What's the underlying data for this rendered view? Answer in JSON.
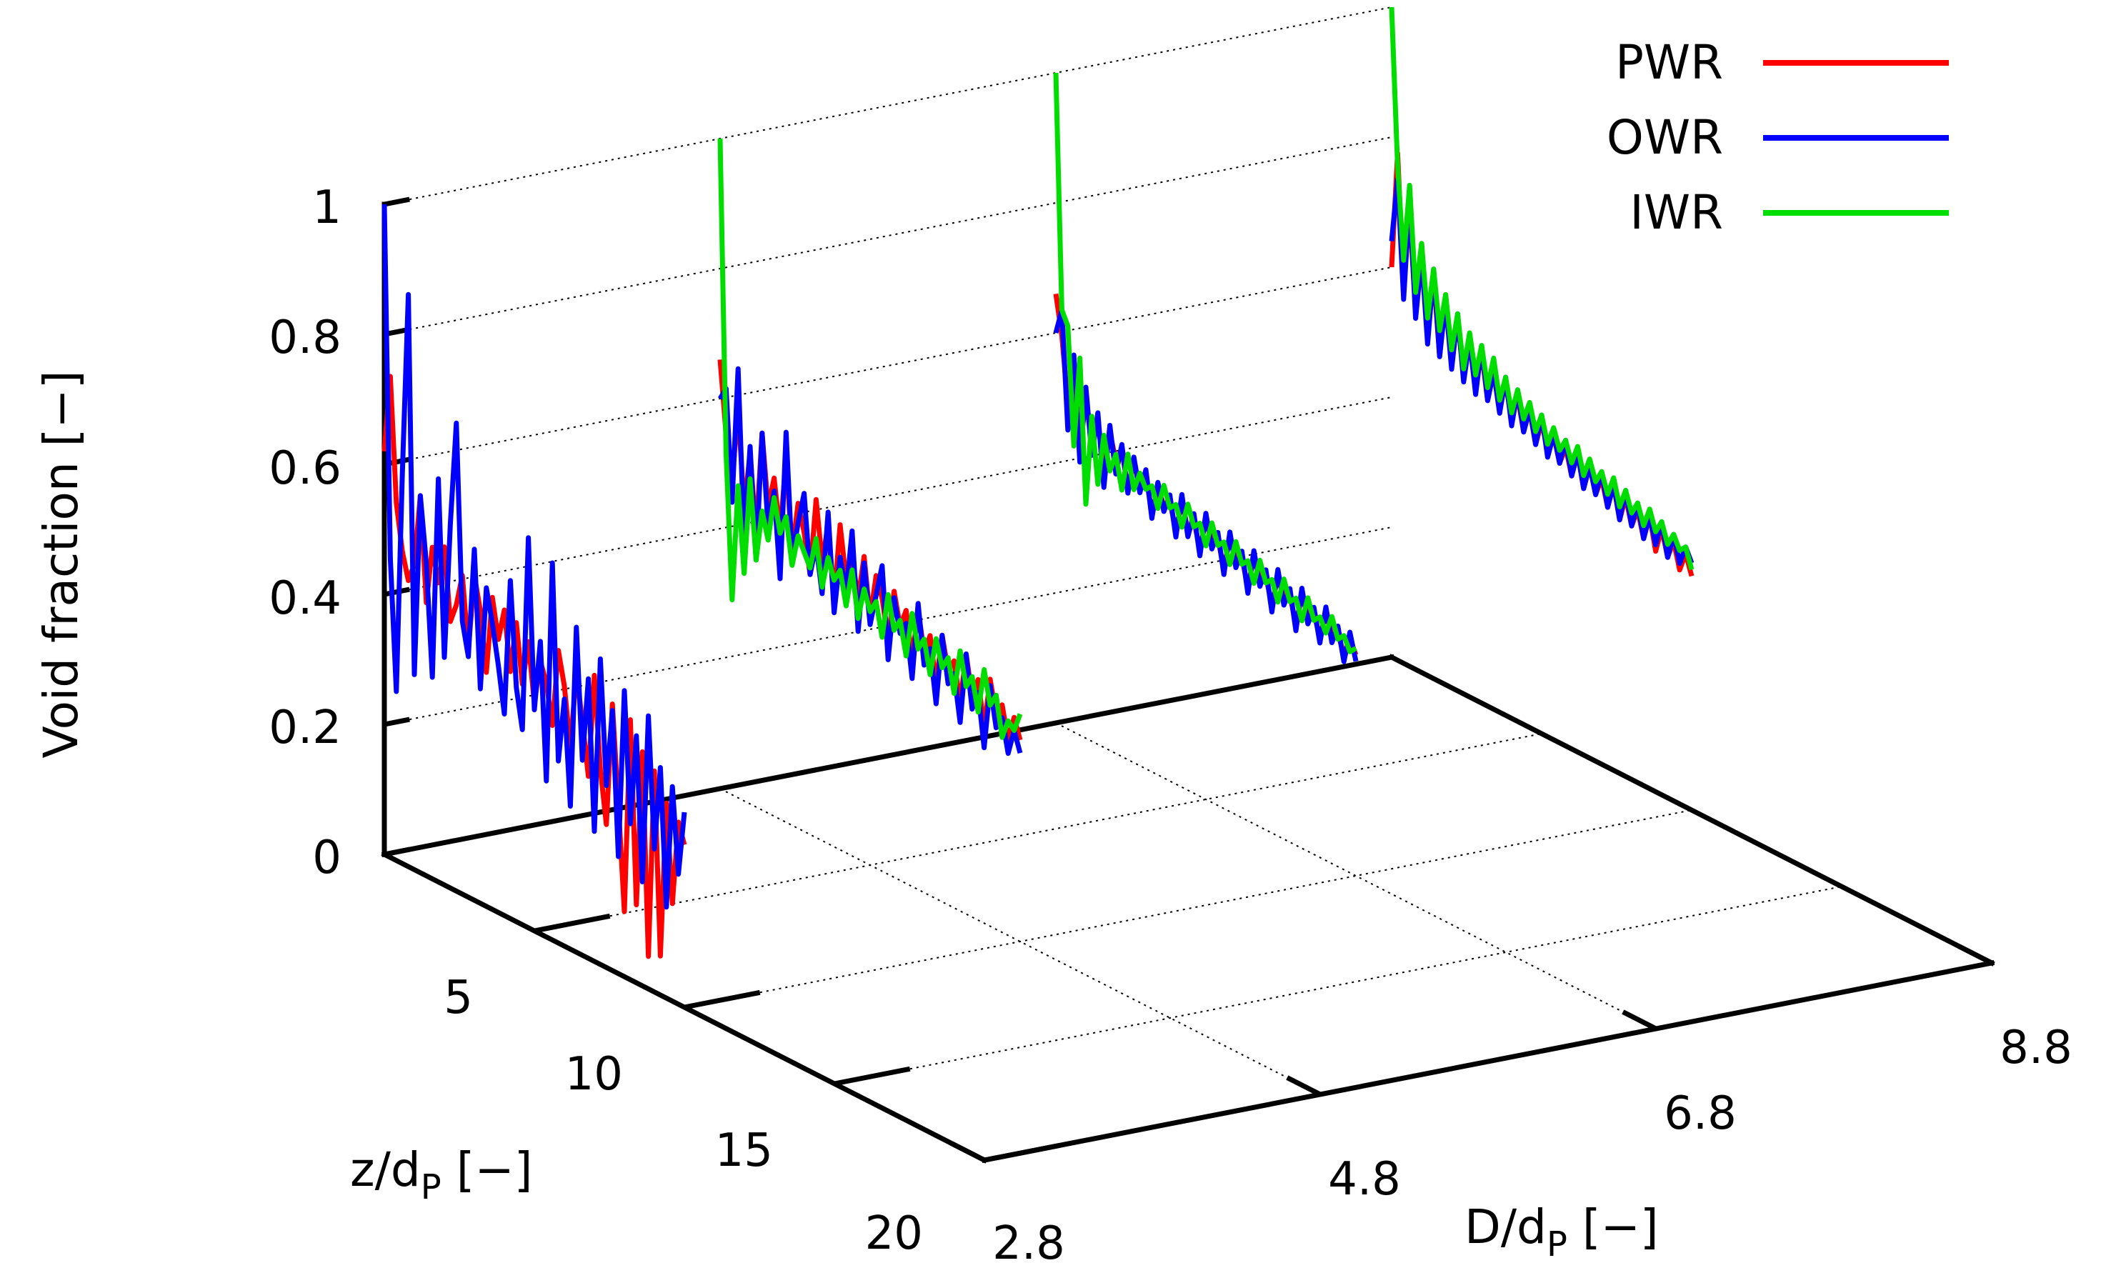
{
  "chart_data": {
    "type": "line",
    "subtype": "3d-waterfall",
    "title": "",
    "zlabel": "Void fraction [−]",
    "xlabel": "D/d",
    "xlabel_sub": "P",
    "xlabel_unit": " [−]",
    "ylabel": "z/d",
    "ylabel_sub": "P",
    "ylabel_unit": " [−]",
    "zlim": [
      0,
      1
    ],
    "ylim": [
      0,
      20
    ],
    "xlim": [
      2.8,
      8.8
    ],
    "z_ticks": [
      "0",
      "0.2",
      "0.4",
      "0.6",
      "0.8",
      "1"
    ],
    "y_ticks": [
      "5",
      "10",
      "15",
      "20"
    ],
    "x_ticks": [
      "2.8",
      "4.8",
      "6.8",
      "8.8"
    ],
    "grid": true,
    "legend_position": "top-right",
    "colors": {
      "PWR": "#ff0000",
      "OWR": "#0000ff",
      "IWR": "#00dd00"
    },
    "legend": [
      "PWR",
      "OWR",
      "IWR"
    ],
    "series": [
      {
        "name": "PWR",
        "D": 2.8,
        "color": "#ff0000",
        "z": [
          0.0,
          0.2,
          0.4,
          0.6,
          0.8,
          1.0,
          1.2,
          1.4,
          1.6,
          1.8,
          2.0,
          2.2,
          2.4,
          2.6,
          2.8,
          3.0,
          3.2,
          3.4,
          3.6,
          3.8,
          4.0,
          4.2,
          4.4,
          4.6,
          4.8,
          5.0,
          5.2,
          5.4,
          5.6,
          5.8,
          6.0,
          6.2,
          6.4,
          6.6,
          6.8,
          7.0,
          7.2,
          7.4,
          7.6,
          7.8,
          8.0,
          8.2,
          8.4,
          8.6,
          8.8,
          9.0,
          9.2,
          9.4,
          9.6,
          9.8,
          10.0
        ],
        "void": [
          0.62,
          0.74,
          0.55,
          0.48,
          0.44,
          0.47,
          0.58,
          0.42,
          0.51,
          0.46,
          0.52,
          0.41,
          0.44,
          0.49,
          0.38,
          0.5,
          0.45,
          0.36,
          0.48,
          0.42,
          0.47,
          0.38,
          0.46,
          0.37,
          0.44,
          0.35,
          0.42,
          0.39,
          0.33,
          0.45,
          0.4,
          0.31,
          0.43,
          0.36,
          0.28,
          0.44,
          0.3,
          0.22,
          0.41,
          0.26,
          0.1,
          0.4,
          0.12,
          0.36,
          0.05,
          0.34,
          0.06,
          0.3,
          0.15,
          0.28,
          0.25
        ]
      },
      {
        "name": "OWR",
        "D": 2.8,
        "color": "#0000ff",
        "z": [
          0.0,
          0.2,
          0.4,
          0.6,
          0.8,
          1.0,
          1.2,
          1.4,
          1.6,
          1.8,
          2.0,
          2.2,
          2.4,
          2.6,
          2.8,
          3.0,
          3.2,
          3.4,
          3.6,
          3.8,
          4.0,
          4.2,
          4.4,
          4.6,
          4.8,
          5.0,
          5.2,
          5.4,
          5.6,
          5.8,
          6.0,
          6.2,
          6.4,
          6.6,
          6.8,
          7.0,
          7.2,
          7.4,
          7.6,
          7.8,
          8.0,
          8.2,
          8.4,
          8.6,
          8.8,
          9.0,
          9.2,
          9.4,
          9.6,
          9.8,
          10.0
        ],
        "void": [
          1.0,
          0.46,
          0.26,
          0.6,
          0.88,
          0.3,
          0.58,
          0.48,
          0.31,
          0.62,
          0.35,
          0.56,
          0.72,
          0.42,
          0.37,
          0.54,
          0.33,
          0.49,
          0.44,
          0.38,
          0.31,
          0.52,
          0.36,
          0.3,
          0.6,
          0.34,
          0.45,
          0.24,
          0.58,
          0.28,
          0.38,
          0.22,
          0.5,
          0.3,
          0.43,
          0.2,
          0.47,
          0.28,
          0.4,
          0.18,
          0.44,
          0.24,
          0.38,
          0.16,
          0.42,
          0.22,
          0.35,
          0.14,
          0.33,
          0.2,
          0.3
        ]
      },
      {
        "name": "PWR",
        "D": 4.8,
        "color": "#ff0000",
        "z": [
          0.0,
          0.2,
          0.4,
          0.6,
          0.8,
          1.0,
          1.2,
          1.4,
          1.6,
          1.8,
          2.0,
          2.2,
          2.4,
          2.6,
          2.8,
          3.0,
          3.2,
          3.4,
          3.6,
          3.8,
          4.0,
          4.2,
          4.4,
          4.6,
          4.8,
          5.0,
          5.2,
          5.4,
          5.6,
          5.8,
          6.0,
          6.2,
          6.4,
          6.6,
          6.8,
          7.0,
          7.2,
          7.4,
          7.6,
          7.8,
          8.0,
          8.2,
          8.4,
          8.6,
          8.8,
          9.0,
          9.2,
          9.4,
          9.6,
          9.8,
          10.0
        ],
        "void": [
          0.66,
          0.55,
          0.48,
          0.6,
          0.45,
          0.54,
          0.42,
          0.58,
          0.47,
          0.52,
          0.44,
          0.56,
          0.42,
          0.5,
          0.46,
          0.4,
          0.52,
          0.43,
          0.49,
          0.38,
          0.5,
          0.42,
          0.46,
          0.4,
          0.47,
          0.38,
          0.45,
          0.42,
          0.36,
          0.44,
          0.39,
          0.42,
          0.35,
          0.43,
          0.37,
          0.4,
          0.33,
          0.41,
          0.36,
          0.38,
          0.32,
          0.4,
          0.34,
          0.37,
          0.3,
          0.38,
          0.33,
          0.35,
          0.3,
          0.34,
          0.31
        ]
      },
      {
        "name": "OWR",
        "D": 4.8,
        "color": "#0000ff",
        "z": [
          0.0,
          0.2,
          0.4,
          0.6,
          0.8,
          1.0,
          1.2,
          1.4,
          1.6,
          1.8,
          2.0,
          2.2,
          2.4,
          2.6,
          2.8,
          3.0,
          3.2,
          3.4,
          3.6,
          3.8,
          4.0,
          4.2,
          4.4,
          4.6,
          4.8,
          5.0,
          5.2,
          5.4,
          5.6,
          5.8,
          6.0,
          6.2,
          6.4,
          6.6,
          6.8,
          7.0,
          7.2,
          7.4,
          7.6,
          7.8,
          8.0,
          8.2,
          8.4,
          8.6,
          8.8,
          9.0,
          9.2,
          9.4,
          9.6,
          9.8,
          10.0
        ],
        "void": [
          0.6,
          0.62,
          0.45,
          0.66,
          0.4,
          0.55,
          0.38,
          0.58,
          0.44,
          0.5,
          0.37,
          0.6,
          0.41,
          0.47,
          0.52,
          0.4,
          0.45,
          0.38,
          0.51,
          0.36,
          0.45,
          0.4,
          0.5,
          0.35,
          0.46,
          0.37,
          0.42,
          0.47,
          0.33,
          0.43,
          0.38,
          0.4,
          0.32,
          0.44,
          0.35,
          0.38,
          0.3,
          0.41,
          0.34,
          0.36,
          0.29,
          0.4,
          0.32,
          0.35,
          0.27,
          0.37,
          0.31,
          0.33,
          0.28,
          0.32,
          0.29
        ]
      },
      {
        "name": "IWR",
        "D": 4.8,
        "color": "#00dd00",
        "z": [
          0.0,
          0.2,
          0.4,
          0.6,
          0.8,
          1.0,
          1.2,
          1.4,
          1.6,
          1.8,
          2.0,
          2.2,
          2.4,
          2.6,
          2.8,
          3.0,
          3.2,
          3.4,
          3.6,
          3.8,
          4.0,
          4.2,
          4.4,
          4.6,
          4.8,
          5.0,
          5.2,
          5.4,
          5.6,
          5.8,
          6.0,
          6.2,
          6.4,
          6.6,
          6.8,
          7.0,
          7.2,
          7.4,
          7.6,
          7.8,
          8.0,
          8.2,
          8.4,
          8.6,
          8.8,
          9.0,
          9.2,
          9.4,
          9.6,
          9.8,
          10.0
        ],
        "void": [
          1.0,
          0.52,
          0.3,
          0.48,
          0.35,
          0.5,
          0.38,
          0.46,
          0.42,
          0.49,
          0.44,
          0.47,
          0.4,
          0.45,
          0.43,
          0.41,
          0.46,
          0.39,
          0.44,
          0.41,
          0.43,
          0.38,
          0.44,
          0.37,
          0.42,
          0.39,
          0.41,
          0.36,
          0.43,
          0.38,
          0.4,
          0.35,
          0.42,
          0.37,
          0.39,
          0.34,
          0.4,
          0.36,
          0.38,
          0.33,
          0.4,
          0.35,
          0.37,
          0.32,
          0.39,
          0.34,
          0.36,
          0.3,
          0.33,
          0.32,
          0.35
        ]
      },
      {
        "name": "PWR",
        "D": 6.8,
        "color": "#ff0000",
        "z": [
          0.0,
          0.2,
          0.4,
          0.6,
          0.8,
          1.0,
          1.2,
          1.4,
          1.6,
          1.8,
          2.0,
          2.2,
          2.4,
          2.6,
          2.8,
          3.0,
          3.2,
          3.4,
          3.6,
          3.8,
          4.0,
          4.2,
          4.4,
          4.6,
          4.8,
          5.0,
          5.2,
          5.4,
          5.6,
          5.8,
          6.0,
          6.2,
          6.4,
          6.6,
          6.8,
          7.0,
          7.2,
          7.4,
          7.6,
          7.8,
          8.0,
          8.2,
          8.4,
          8.6,
          8.8,
          9.0,
          9.2,
          9.4,
          9.6,
          9.8,
          10.0
        ],
        "void": [
          0.66,
          0.6,
          0.5,
          0.56,
          0.44,
          0.52,
          0.46,
          0.5,
          0.42,
          0.49,
          0.45,
          0.47,
          0.42,
          0.46,
          0.43,
          0.45,
          0.4,
          0.44,
          0.42,
          0.43,
          0.39,
          0.44,
          0.4,
          0.42,
          0.38,
          0.43,
          0.4,
          0.41,
          0.37,
          0.42,
          0.39,
          0.4,
          0.36,
          0.41,
          0.38,
          0.39,
          0.35,
          0.4,
          0.37,
          0.38,
          0.34,
          0.39,
          0.36,
          0.37,
          0.34,
          0.38,
          0.35,
          0.36,
          0.33,
          0.36,
          0.34
        ]
      },
      {
        "name": "OWR",
        "D": 6.8,
        "color": "#0000ff",
        "z": [
          0.0,
          0.2,
          0.4,
          0.6,
          0.8,
          1.0,
          1.2,
          1.4,
          1.6,
          1.8,
          2.0,
          2.2,
          2.4,
          2.6,
          2.8,
          3.0,
          3.2,
          3.4,
          3.6,
          3.8,
          4.0,
          4.2,
          4.4,
          4.6,
          4.8,
          5.0,
          5.2,
          5.4,
          5.6,
          5.8,
          6.0,
          6.2,
          6.4,
          6.6,
          6.8,
          7.0,
          7.2,
          7.4,
          7.6,
          7.8,
          8.0,
          8.2,
          8.4,
          8.6,
          8.8,
          9.0,
          9.2,
          9.4,
          9.6,
          9.8,
          10.0
        ],
        "void": [
          0.6,
          0.64,
          0.46,
          0.58,
          0.42,
          0.54,
          0.44,
          0.51,
          0.4,
          0.5,
          0.43,
          0.48,
          0.41,
          0.47,
          0.42,
          0.46,
          0.39,
          0.45,
          0.41,
          0.44,
          0.38,
          0.45,
          0.39,
          0.43,
          0.37,
          0.44,
          0.39,
          0.42,
          0.36,
          0.43,
          0.38,
          0.41,
          0.35,
          0.42,
          0.37,
          0.4,
          0.34,
          0.41,
          0.36,
          0.39,
          0.33,
          0.4,
          0.35,
          0.38,
          0.33,
          0.39,
          0.34,
          0.37,
          0.32,
          0.37,
          0.33
        ]
      },
      {
        "name": "IWR",
        "D": 6.8,
        "color": "#00dd00",
        "z": [
          0.0,
          0.2,
          0.4,
          0.6,
          0.8,
          1.0,
          1.2,
          1.4,
          1.6,
          1.8,
          2.0,
          2.2,
          2.4,
          2.6,
          2.8,
          3.0,
          3.2,
          3.4,
          3.6,
          3.8,
          4.0,
          4.2,
          4.4,
          4.6,
          4.8,
          5.0,
          5.2,
          5.4,
          5.6,
          5.8,
          6.0,
          6.2,
          6.4,
          6.6,
          6.8,
          7.0,
          7.2,
          7.4,
          7.6,
          7.8,
          8.0,
          8.2,
          8.4,
          8.6,
          8.8,
          9.0,
          9.2,
          9.4,
          9.6,
          9.8,
          10.0
        ],
        "void": [
          1.0,
          0.64,
          0.62,
          0.44,
          0.58,
          0.36,
          0.5,
          0.4,
          0.48,
          0.43,
          0.46,
          0.41,
          0.47,
          0.42,
          0.45,
          0.43,
          0.44,
          0.41,
          0.45,
          0.42,
          0.43,
          0.4,
          0.44,
          0.41,
          0.42,
          0.39,
          0.43,
          0.4,
          0.41,
          0.38,
          0.42,
          0.39,
          0.4,
          0.37,
          0.41,
          0.38,
          0.39,
          0.36,
          0.4,
          0.37,
          0.38,
          0.35,
          0.39,
          0.36,
          0.37,
          0.35,
          0.38,
          0.35,
          0.36,
          0.34,
          0.35
        ]
      },
      {
        "name": "PWR",
        "D": 8.8,
        "color": "#ff0000",
        "z": [
          0.0,
          0.2,
          0.4,
          0.6,
          0.8,
          1.0,
          1.2,
          1.4,
          1.6,
          1.8,
          2.0,
          2.2,
          2.4,
          2.6,
          2.8,
          3.0,
          3.2,
          3.4,
          3.6,
          3.8,
          4.0,
          4.2,
          4.4,
          4.6,
          4.8,
          5.0,
          5.2,
          5.4,
          5.6,
          5.8,
          6.0,
          6.2,
          6.4,
          6.6,
          6.8,
          7.0,
          7.2,
          7.4,
          7.6,
          7.8,
          8.0,
          8.2,
          8.4,
          8.6,
          8.8,
          9.0,
          9.2,
          9.4,
          9.6,
          9.8,
          10.0
        ],
        "void": [
          0.6,
          0.78,
          0.58,
          0.7,
          0.55,
          0.66,
          0.52,
          0.62,
          0.5,
          0.6,
          0.5,
          0.57,
          0.49,
          0.55,
          0.48,
          0.54,
          0.47,
          0.52,
          0.47,
          0.51,
          0.46,
          0.5,
          0.45,
          0.49,
          0.44,
          0.48,
          0.44,
          0.47,
          0.43,
          0.46,
          0.42,
          0.46,
          0.41,
          0.45,
          0.41,
          0.44,
          0.4,
          0.44,
          0.39,
          0.43,
          0.39,
          0.42,
          0.38,
          0.42,
          0.37,
          0.41,
          0.37,
          0.4,
          0.36,
          0.39,
          0.36
        ]
      },
      {
        "name": "OWR",
        "D": 8.8,
        "color": "#0000ff",
        "z": [
          0.0,
          0.2,
          0.4,
          0.6,
          0.8,
          1.0,
          1.2,
          1.4,
          1.6,
          1.8,
          2.0,
          2.2,
          2.4,
          2.6,
          2.8,
          3.0,
          3.2,
          3.4,
          3.6,
          3.8,
          4.0,
          4.2,
          4.4,
          4.6,
          4.8,
          5.0,
          5.2,
          5.4,
          5.6,
          5.8,
          6.0,
          6.2,
          6.4,
          6.6,
          6.8,
          7.0,
          7.2,
          7.4,
          7.6,
          7.8,
          8.0,
          8.2,
          8.4,
          8.6,
          8.8,
          9.0,
          9.2,
          9.4,
          9.6,
          9.8,
          10.0
        ],
        "void": [
          0.64,
          0.74,
          0.56,
          0.72,
          0.54,
          0.64,
          0.51,
          0.63,
          0.5,
          0.59,
          0.49,
          0.58,
          0.48,
          0.55,
          0.47,
          0.55,
          0.47,
          0.52,
          0.46,
          0.52,
          0.45,
          0.51,
          0.45,
          0.49,
          0.44,
          0.49,
          0.43,
          0.47,
          0.43,
          0.47,
          0.42,
          0.46,
          0.41,
          0.45,
          0.41,
          0.45,
          0.4,
          0.44,
          0.39,
          0.44,
          0.39,
          0.43,
          0.38,
          0.42,
          0.38,
          0.42,
          0.37,
          0.41,
          0.37,
          0.4,
          0.38
        ]
      },
      {
        "name": "IWR",
        "D": 8.8,
        "color": "#00dd00",
        "z": [
          0.0,
          0.2,
          0.4,
          0.6,
          0.8,
          1.0,
          1.2,
          1.4,
          1.6,
          1.8,
          2.0,
          2.2,
          2.4,
          2.6,
          2.8,
          3.0,
          3.2,
          3.4,
          3.6,
          3.8,
          4.0,
          4.2,
          4.4,
          4.6,
          4.8,
          5.0,
          5.2,
          5.4,
          5.6,
          5.8,
          6.0,
          6.2,
          6.4,
          6.6,
          6.8,
          7.0,
          7.2,
          7.4,
          7.6,
          7.8,
          8.0,
          8.2,
          8.4,
          8.6,
          8.8,
          9.0,
          9.2,
          9.4,
          9.6,
          9.8,
          10.0
        ],
        "void": [
          1.0,
          0.76,
          0.62,
          0.74,
          0.58,
          0.66,
          0.55,
          0.63,
          0.54,
          0.6,
          0.52,
          0.58,
          0.5,
          0.56,
          0.5,
          0.55,
          0.49,
          0.54,
          0.48,
          0.52,
          0.47,
          0.51,
          0.47,
          0.5,
          0.46,
          0.49,
          0.45,
          0.48,
          0.45,
          0.47,
          0.44,
          0.47,
          0.43,
          0.46,
          0.43,
          0.45,
          0.42,
          0.45,
          0.41,
          0.44,
          0.41,
          0.43,
          0.4,
          0.43,
          0.4,
          0.42,
          0.39,
          0.41,
          0.39,
          0.4,
          0.37
        ]
      }
    ]
  }
}
